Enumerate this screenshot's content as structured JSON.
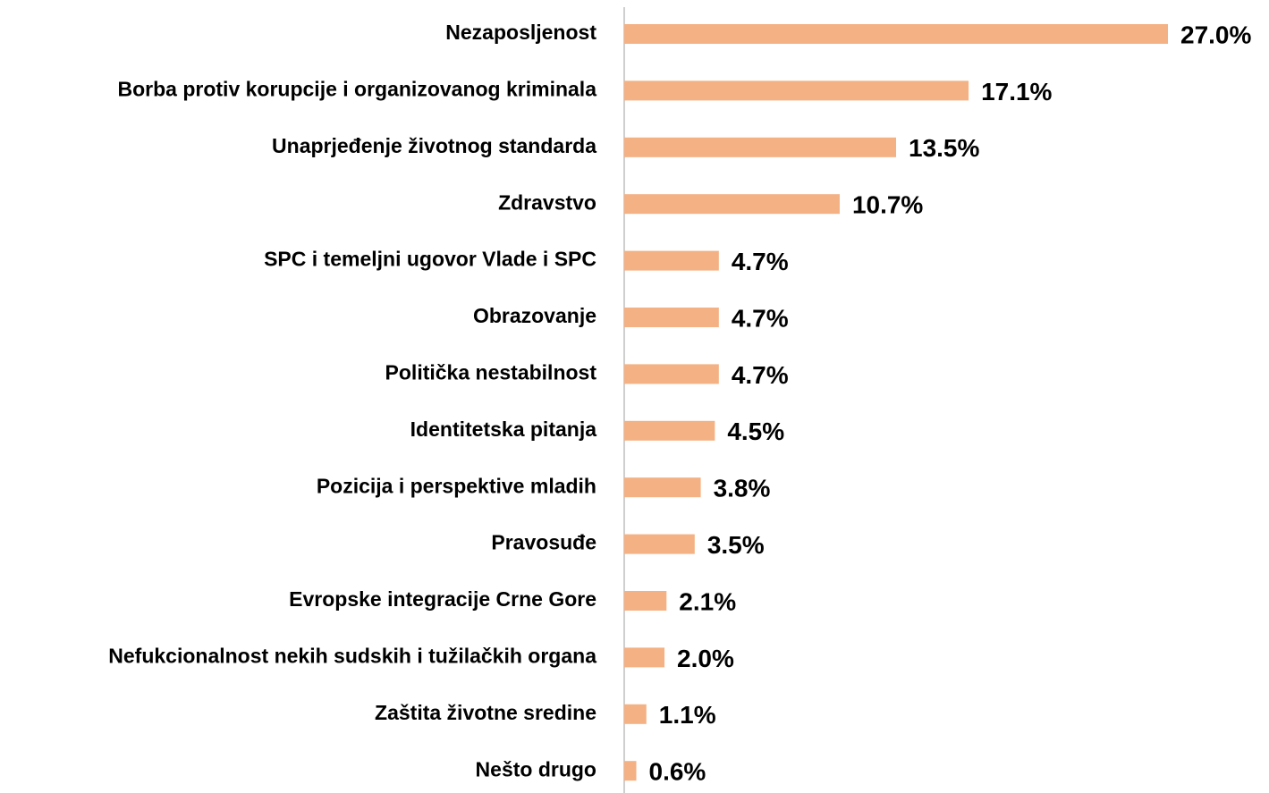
{
  "chart_data": {
    "type": "barh",
    "categories": [
      "Nezaposljenost",
      "Borba protiv korupcije i organizovanog kriminala",
      "Unaprjeđenje životnog standarda",
      "Zdravstvo",
      "SPC i temeljni ugovor Vlade i SPC",
      "Obrazovanje",
      "Politička nestabilnost",
      "Identitetska pitanja",
      "Pozicija i perspektive mladih",
      "Pravosuđe",
      "Evropske integracije Crne Gore",
      "Nefukcionalnost nekih sudskih i tužilačkih organa",
      "Zaštita životne sredine",
      "Nešto drugo"
    ],
    "values": [
      27.0,
      17.1,
      13.5,
      10.7,
      4.7,
      4.7,
      4.7,
      4.5,
      3.8,
      3.5,
      2.1,
      2.0,
      1.1,
      0.6
    ],
    "value_labels": [
      "27.0%",
      "17.1%",
      "13.5%",
      "10.7%",
      "4.7%",
      "4.7%",
      "4.7%",
      "4.5%",
      "3.8%",
      "3.5%",
      "2.1%",
      "2.0%",
      "1.1%",
      "0.6%"
    ],
    "color": "#f4b183"
  }
}
